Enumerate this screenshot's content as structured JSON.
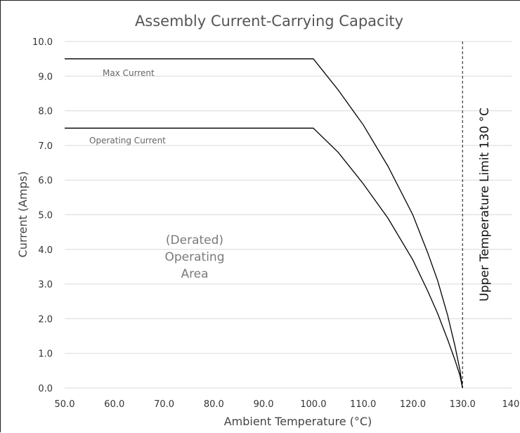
{
  "chart_data": {
    "type": "line",
    "title": "Assembly Current-Carrying Capacity",
    "xlabel": "Ambient Temperature (°C)",
    "ylabel": "Current (Amps)",
    "xlim": [
      50,
      140
    ],
    "ylim": [
      0,
      10
    ],
    "x_ticks": [
      "50.0",
      "60.0",
      "70.0",
      "80.0",
      "90.0",
      "100.0",
      "110.0",
      "120.0",
      "130.0",
      "140."
    ],
    "y_ticks": [
      "0.0",
      "1.0",
      "2.0",
      "3.0",
      "4.0",
      "5.0",
      "6.0",
      "7.0",
      "8.0",
      "9.0",
      "10.0"
    ],
    "grid": "horizontal",
    "legend": "none",
    "series": [
      {
        "name": "Max Current",
        "points": [
          [
            50,
            9.5
          ],
          [
            100,
            9.5
          ],
          [
            105,
            8.6
          ],
          [
            110,
            7.6
          ],
          [
            115,
            6.4
          ],
          [
            120,
            5.0
          ],
          [
            123,
            3.9
          ],
          [
            125,
            3.1
          ],
          [
            127,
            2.1
          ],
          [
            128.5,
            1.2
          ],
          [
            129.5,
            0.5
          ],
          [
            130,
            0
          ]
        ]
      },
      {
        "name": "Operating Current",
        "points": [
          [
            50,
            7.5
          ],
          [
            100,
            7.5
          ],
          [
            105,
            6.8
          ],
          [
            110,
            5.9
          ],
          [
            115,
            4.9
          ],
          [
            120,
            3.7
          ],
          [
            123,
            2.8
          ],
          [
            125,
            2.15
          ],
          [
            127,
            1.4
          ],
          [
            128.5,
            0.8
          ],
          [
            129.5,
            0.35
          ],
          [
            130,
            0
          ]
        ]
      }
    ],
    "reference_line": {
      "x": 130,
      "style": "dashed",
      "label": "Upper Temperature Limit 130 °C"
    },
    "annotations": {
      "area_line1": "(Derated)",
      "area_line2": "Operating",
      "area_line3": "Area"
    }
  }
}
